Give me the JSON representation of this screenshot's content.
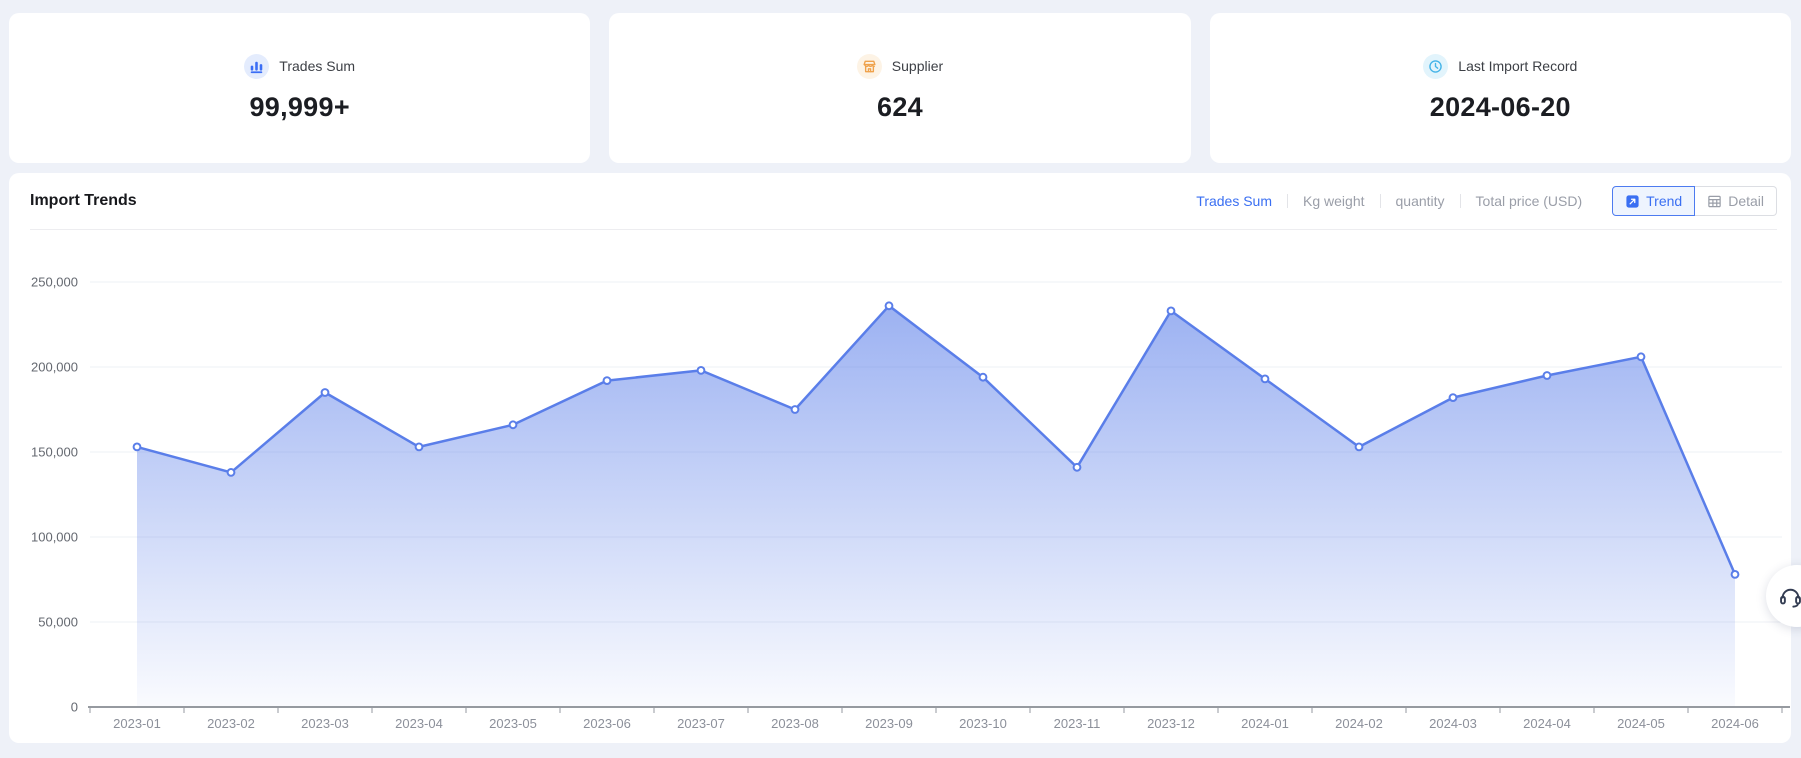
{
  "page": {
    "background": "#eef1f8"
  },
  "stat_cards": [
    {
      "label": "Trades Sum",
      "value": "99,999+",
      "icon": "bar-chart-icon",
      "icon_color": "#3b6ef5",
      "icon_bg": "#e4ecfd"
    },
    {
      "label": "Supplier",
      "value": "624",
      "icon": "storefront-icon",
      "icon_color": "#efa24c",
      "icon_bg": "#fdf3e5"
    },
    {
      "label": "Last Import Record",
      "value": "2024-06-20",
      "icon": "clock-icon",
      "icon_color": "#45b4e8",
      "icon_bg": "#e2f4fc"
    }
  ],
  "chart_section": {
    "title": "Import Trends",
    "metric_tabs": [
      {
        "label": "Trades Sum",
        "active": true
      },
      {
        "label": "Kg weight",
        "active": false
      },
      {
        "label": "quantity",
        "active": false
      },
      {
        "label": "Total price (USD)",
        "active": false
      }
    ],
    "view_buttons": [
      {
        "label": "Trend",
        "icon": "trend-icon",
        "active": true
      },
      {
        "label": "Detail",
        "icon": "table-icon",
        "active": false
      }
    ]
  },
  "chart_data": {
    "type": "area",
    "title": "Import Trends",
    "x": [
      "2023-01",
      "2023-02",
      "2023-03",
      "2023-04",
      "2023-05",
      "2023-06",
      "2023-07",
      "2023-08",
      "2023-09",
      "2023-10",
      "2023-11",
      "2023-12",
      "2024-01",
      "2024-02",
      "2024-03",
      "2024-04",
      "2024-05",
      "2024-06"
    ],
    "series": [
      {
        "name": "Trades Sum",
        "values": [
          153000,
          138000,
          185000,
          153000,
          166000,
          192000,
          198000,
          175000,
          236000,
          194000,
          141000,
          233000,
          193000,
          153000,
          182000,
          195000,
          206000,
          78000
        ]
      }
    ],
    "xlabel": "",
    "ylabel": "",
    "ylim": [
      0,
      250000
    ],
    "y_ticks": [
      0,
      50000,
      100000,
      150000,
      200000,
      250000
    ],
    "grid": true,
    "legend_position": "none",
    "line_color": "#5a7ee9",
    "area_gradient_top": "rgba(90,126,233,0.60)",
    "area_gradient_bottom": "rgba(90,126,233,0.03)"
  },
  "floating": {
    "support_label": "customer-support"
  }
}
